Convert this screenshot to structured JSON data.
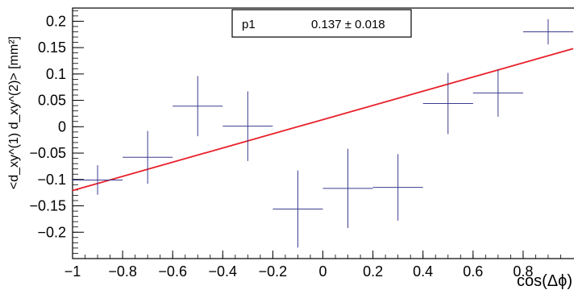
{
  "chart_data": {
    "type": "scatter",
    "xlabel": "cos(Δϕ)",
    "ylabel": "<d_xy^(1) d_xy^(2)> [mm²]",
    "xlim": [
      -1,
      1
    ],
    "ylim": [
      -0.25,
      0.225
    ],
    "x_ticks": [
      -1,
      -0.8,
      -0.6,
      -0.4,
      -0.2,
      0,
      0.2,
      0.4,
      0.6,
      0.8
    ],
    "x_tick_labels": [
      "−1",
      "−0.8",
      "−0.6",
      "−0.4",
      "−0.2",
      "0",
      "0.2",
      "0.4",
      "0.6",
      "0.8"
    ],
    "y_ticks": [
      -0.2,
      -0.15,
      -0.1,
      -0.05,
      0,
      0.05,
      0.1,
      0.15,
      0.2
    ],
    "y_tick_labels": [
      "−0.2",
      "−0.15",
      "−0.1",
      "−0.05",
      "0",
      "0.05",
      "0.1",
      "0.15",
      "0.2"
    ],
    "grid": false,
    "series": [
      {
        "kind": "points_with_errors",
        "color": "#3b3b8f",
        "points": [
          {
            "x": -0.9,
            "y": -0.101,
            "xerr": 0.1,
            "yerr": 0.028
          },
          {
            "x": -0.7,
            "y": -0.058,
            "xerr": 0.1,
            "yerr": 0.05
          },
          {
            "x": -0.5,
            "y": 0.039,
            "xerr": 0.1,
            "yerr": 0.057
          },
          {
            "x": -0.3,
            "y": 0.001,
            "xerr": 0.1,
            "yerr": 0.066
          },
          {
            "x": -0.1,
            "y": -0.156,
            "xerr": 0.1,
            "yerr": 0.073
          },
          {
            "x": 0.1,
            "y": -0.117,
            "xerr": 0.1,
            "yerr": 0.075
          },
          {
            "x": 0.3,
            "y": -0.115,
            "xerr": 0.1,
            "yerr": 0.063
          },
          {
            "x": 0.5,
            "y": 0.044,
            "xerr": 0.1,
            "yerr": 0.058
          },
          {
            "x": 0.7,
            "y": 0.064,
            "xerr": 0.1,
            "yerr": 0.045
          },
          {
            "x": 0.9,
            "y": 0.18,
            "xerr": 0.1,
            "yerr": 0.024
          }
        ]
      },
      {
        "kind": "fit_line",
        "color": "#e8202a",
        "x": [
          -1,
          1
        ],
        "y": [
          -0.121,
          0.148
        ]
      }
    ],
    "stats_box": {
      "param_name": "p1",
      "param_value": "0.137 ± 0.018",
      "placement": "top-center"
    }
  }
}
